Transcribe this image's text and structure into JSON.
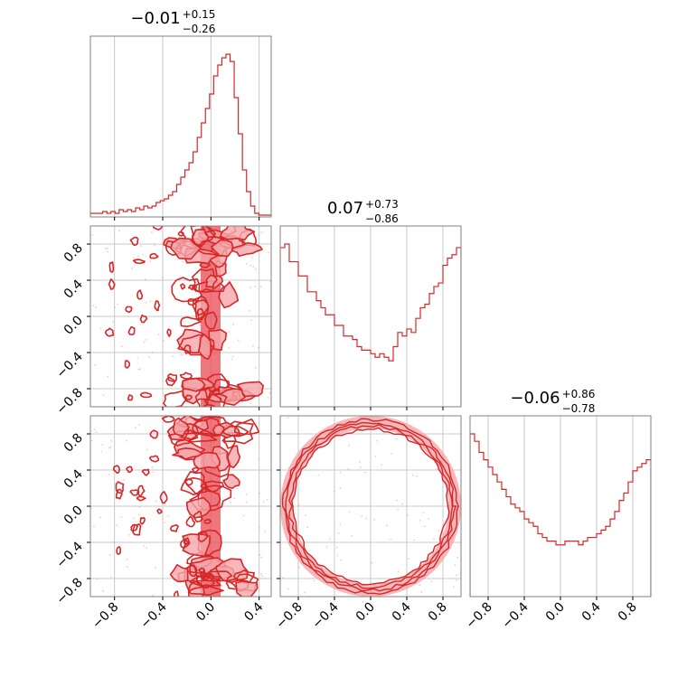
{
  "chart_data": {
    "type": "corner",
    "color": "#d62728",
    "fill_color": "#f4a6aa",
    "grid": true,
    "x_ticks": {
      "col0": [
        -0.8,
        -0.4,
        0.0,
        0.4
      ],
      "col1": [
        -0.8,
        -0.4,
        0.0,
        0.4,
        0.8
      ],
      "col2": [
        -0.8,
        -0.4,
        0.0,
        0.4,
        0.8
      ]
    },
    "y_ticks": [
      -0.8,
      -0.4,
      0.0,
      0.4,
      0.8
    ],
    "tick_labels": {
      "x_col0": [
        "−0.8",
        "−0.4",
        "0.0",
        "0.4"
      ],
      "x_col1": [
        "−0.8",
        "−0.4",
        "0.0",
        "0.4",
        "0.8"
      ],
      "x_col2": [
        "−0.8",
        "−0.4",
        "0.0",
        "0.4",
        "0.8"
      ],
      "y": [
        "−0.8",
        "−0.4",
        "0.0",
        "0.4",
        "0.8"
      ]
    },
    "axis_ranges": {
      "p0": [
        -1.0,
        0.5
      ],
      "p1": [
        -1.0,
        1.0
      ],
      "p2": [
        -1.0,
        1.0
      ]
    },
    "titles": [
      {
        "median": "−0.01",
        "plus": "+0.15",
        "minus": "−0.26"
      },
      {
        "median": "0.07",
        "plus": "+0.73",
        "minus": "−0.86"
      },
      {
        "median": "−0.06",
        "plus": "+0.86",
        "minus": "−0.78"
      }
    ],
    "histograms": [
      {
        "range": [
          -1.0,
          0.5
        ],
        "counts": [
          2,
          2,
          2,
          3,
          2,
          3,
          2,
          4,
          3,
          4,
          3,
          5,
          4,
          6,
          5,
          6,
          8,
          9,
          10,
          12,
          14,
          18,
          22,
          26,
          30,
          36,
          44,
          52,
          60,
          68,
          78,
          84,
          88,
          90,
          86,
          66,
          46,
          26,
          14,
          6,
          2,
          1,
          1,
          1
        ]
      },
      {
        "range": [
          -1.0,
          1.0
        ],
        "counts": [
          90,
          92,
          82,
          82,
          74,
          74,
          65,
          65,
          60,
          56,
          52,
          52,
          46,
          46,
          40,
          40,
          38,
          34,
          32,
          32,
          30,
          28,
          30,
          28,
          26,
          34,
          42,
          40,
          44,
          42,
          50,
          56,
          58,
          64,
          68,
          70,
          80,
          84,
          86,
          90
        ]
      },
      {
        "range": [
          -1.0,
          1.0
        ],
        "counts": [
          88,
          84,
          78,
          74,
          70,
          66,
          62,
          58,
          54,
          50,
          48,
          46,
          42,
          40,
          38,
          34,
          32,
          30,
          30,
          28,
          28,
          30,
          30,
          30,
          28,
          30,
          32,
          32,
          34,
          36,
          38,
          42,
          46,
          52,
          56,
          62,
          68,
          70,
          72,
          74
        ]
      }
    ]
  }
}
